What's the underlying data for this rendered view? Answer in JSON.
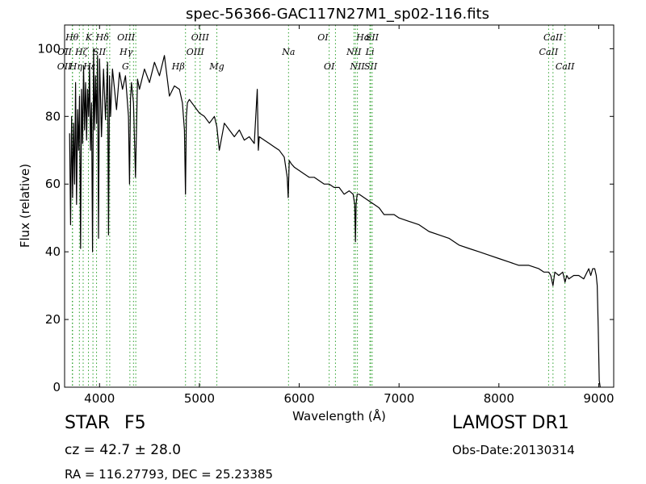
{
  "chart_data": {
    "type": "line",
    "title": "spec-56366-GAC117N27M1_sp02-116.fits",
    "xlabel": "Wavelength (Å)",
    "ylabel": "Flux (relative)",
    "xlim": [
      3650,
      9150
    ],
    "ylim": [
      0,
      107
    ],
    "xticks": [
      4000,
      5000,
      6000,
      7000,
      8000,
      9000
    ],
    "yticks": [
      0,
      20,
      40,
      60,
      80,
      100
    ],
    "grid": false,
    "line_color": "#000000",
    "marker_color": "#2ca02c",
    "series": [
      {
        "x": [
          3700,
          3710,
          3720,
          3730,
          3740,
          3750,
          3760,
          3770,
          3780,
          3790,
          3800,
          3810,
          3820,
          3830,
          3840,
          3850,
          3860,
          3870,
          3880,
          3890,
          3900,
          3910,
          3920,
          3930,
          3940,
          3950,
          3960,
          3970,
          3980,
          3990,
          4000,
          4020,
          4040,
          4060,
          4080,
          4090,
          4100,
          4110,
          4130,
          4150,
          4170,
          4200,
          4230,
          4260,
          4290,
          4300,
          4310,
          4320,
          4340,
          4360,
          4380,
          4400,
          4450,
          4500,
          4550,
          4600,
          4650,
          4700,
          4750,
          4800,
          4830,
          4850,
          4861,
          4870,
          4880,
          4900,
          4950,
          5000,
          5050,
          5100,
          5150,
          5175,
          5200,
          5250,
          5300,
          5350,
          5400,
          5450,
          5500,
          5550,
          5580,
          5590,
          5600,
          5650,
          5700,
          5750,
          5800,
          5850,
          5880,
          5890,
          5900,
          5920,
          5950,
          6000,
          6050,
          6100,
          6150,
          6200,
          6250,
          6300,
          6350,
          6400,
          6450,
          6500,
          6540,
          6556,
          6563,
          6570,
          6580,
          6600,
          6650,
          6700,
          6750,
          6800,
          6850,
          6900,
          6950,
          7000,
          7100,
          7200,
          7300,
          7400,
          7500,
          7600,
          7700,
          7800,
          7900,
          8000,
          8100,
          8200,
          8300,
          8400,
          8450,
          8500,
          8520,
          8542,
          8560,
          8600,
          8640,
          8662,
          8680,
          8700,
          8750,
          8800,
          8850,
          8900,
          8920,
          8940,
          8960,
          8975,
          8985,
          8995,
          9005,
          9015
        ],
        "values": [
          75,
          48,
          80,
          56,
          78,
          60,
          90,
          54,
          82,
          70,
          86,
          41,
          88,
          72,
          95,
          76,
          90,
          73,
          88,
          80,
          95,
          70,
          84,
          40,
          100,
          76,
          92,
          78,
          98,
          44,
          97,
          74,
          94,
          79,
          96,
          45,
          92,
          80,
          94,
          88,
          82,
          93,
          88,
          92,
          80,
          60,
          85,
          90,
          84,
          62,
          91,
          88,
          94,
          90,
          96,
          92,
          98,
          86,
          89,
          88,
          84,
          76,
          57,
          80,
          84,
          85,
          83,
          81,
          80,
          78,
          80,
          77,
          70,
          78,
          76,
          74,
          76,
          73,
          74,
          72,
          88,
          70,
          74,
          73,
          72,
          71,
          70,
          68,
          62,
          56,
          67,
          66,
          65,
          64,
          63,
          62,
          62,
          61,
          60,
          60,
          59,
          59,
          57,
          58,
          57,
          54,
          43,
          54,
          57,
          57,
          56,
          55,
          54,
          53,
          51,
          51,
          51,
          50,
          49,
          48,
          46,
          45,
          44,
          42,
          41,
          40,
          39,
          38,
          37,
          36,
          36,
          35,
          34,
          34,
          33,
          30,
          34,
          33,
          34,
          31,
          33,
          32,
          33,
          33,
          32,
          35,
          33,
          35,
          35,
          33,
          30,
          18,
          2,
          0
        ]
      }
    ],
    "line_markers": [
      {
        "label": "OII",
        "x": 3727,
        "row": 2,
        "align": "end"
      },
      {
        "label": "Hθ",
        "x": 3798,
        "row": 0,
        "align": "end"
      },
      {
        "label": "OII",
        "x": 3730,
        "row": 1,
        "align": "end"
      },
      {
        "label": "Hη",
        "x": 3836,
        "row": 2,
        "align": "end"
      },
      {
        "label": "Hζ",
        "x": 3889,
        "row": 1,
        "align": "end"
      },
      {
        "label": "K",
        "x": 3934,
        "row": 0,
        "align": "end"
      },
      {
        "label": "Hε",
        "x": 3970,
        "row": 2,
        "align": "end"
      },
      {
        "label": "SII",
        "x": 4072,
        "row": 1,
        "align": "end"
      },
      {
        "label": "Hδ",
        "x": 4102,
        "row": 0,
        "align": "end"
      },
      {
        "label": "G",
        "x": 4304,
        "row": 2,
        "align": "end"
      },
      {
        "label": "Hγ",
        "x": 4340,
        "row": 1,
        "align": "end"
      },
      {
        "label": "OIII",
        "x": 4363,
        "row": 0,
        "align": "end"
      },
      {
        "label": "Hβ",
        "x": 4861,
        "row": 2,
        "align": "end"
      },
      {
        "label": "OIII",
        "x": 4959,
        "row": 1,
        "align": "middle"
      },
      {
        "label": "OIII",
        "x": 5007,
        "row": 0,
        "align": "middle"
      },
      {
        "label": "Mg",
        "x": 5175,
        "row": 2,
        "align": "middle"
      },
      {
        "label": "Na",
        "x": 5893,
        "row": 1,
        "align": "middle"
      },
      {
        "label": "OI",
        "x": 6300,
        "row": 0,
        "align": "end"
      },
      {
        "label": "OI",
        "x": 6363,
        "row": 2,
        "align": "end"
      },
      {
        "label": "NII",
        "x": 6548,
        "row": 1,
        "align": "middle"
      },
      {
        "label": "Hα",
        "x": 6563,
        "row": 0,
        "align": "start"
      },
      {
        "label": "NII",
        "x": 6583,
        "row": 2,
        "align": "middle"
      },
      {
        "label": "Li",
        "x": 6708,
        "row": 1,
        "align": "middle"
      },
      {
        "label": "SII",
        "x": 6716,
        "row": 2,
        "align": "middle"
      },
      {
        "label": "SII",
        "x": 6731,
        "row": 0,
        "align": "middle"
      },
      {
        "label": "CaII",
        "x": 8498,
        "row": 1,
        "align": "middle"
      },
      {
        "label": "CaII",
        "x": 8542,
        "row": 0,
        "align": "middle"
      },
      {
        "label": "CaII",
        "x": 8662,
        "row": 2,
        "align": "middle"
      }
    ]
  },
  "info": {
    "object_class": "STAR",
    "subclass": "F5",
    "survey": "LAMOST DR1",
    "cz_text": "cz = 42.7 ± 28.0",
    "obs_date": "Obs-Date:20130314",
    "radec": "RA = 116.27793, DEC = 25.23385"
  }
}
